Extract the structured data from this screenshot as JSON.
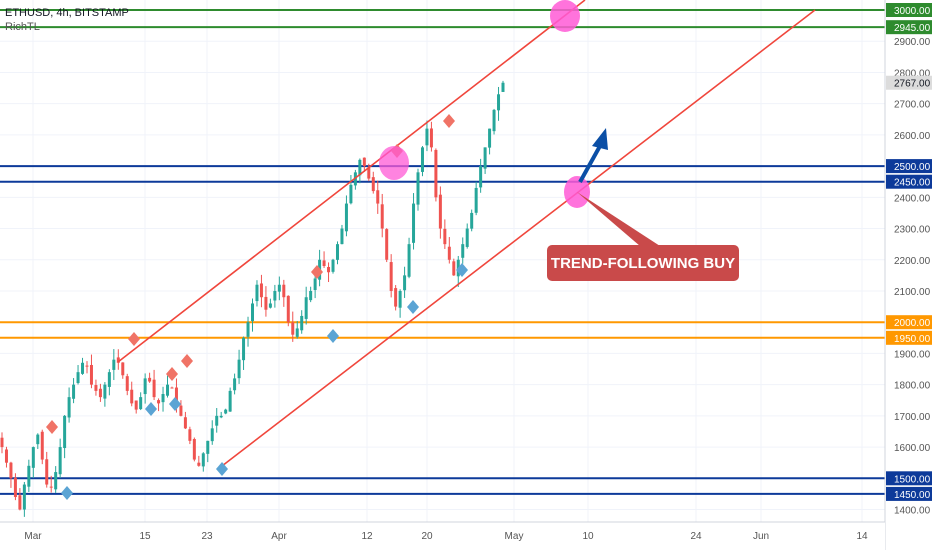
{
  "header": {
    "symbol_line": "ETHUSD, 4h, BITSTAMP",
    "indicator": "RichTL"
  },
  "annotation": {
    "label": "TREND-FOLLOWING BUY"
  },
  "colors": {
    "candle_up": "#26a69a",
    "candle_down": "#ef5350",
    "channel": "#f0463c",
    "blue_level": "#0d3a9a",
    "orange_level": "#ff9800",
    "green_level": "#2e8b2e",
    "pink_marker": "#ff5ad6",
    "arrow": "#0b4fa6",
    "callout_bg": "#c94a4a",
    "marker_up": "#5ba4d4",
    "marker_down": "#f07366"
  },
  "chart_data": {
    "type": "candlestick",
    "symbol": "ETHUSD",
    "timeframe": "4h",
    "exchange": "BITSTAMP",
    "ylim": [
      1350,
      3050
    ],
    "y_ticks": [
      1400,
      1500,
      1600,
      1700,
      1800,
      1900,
      2000,
      2100,
      2200,
      2300,
      2400,
      2500,
      2600,
      2700,
      2800,
      2900,
      3000
    ],
    "x_ticks": [
      "Mar",
      "15",
      "23",
      "Apr",
      "12",
      "20",
      "May",
      "10",
      "24",
      "Jun",
      "14"
    ],
    "price_tags": [
      {
        "value": "3000.00",
        "color": "green"
      },
      {
        "value": "2945.00",
        "color": "green"
      },
      {
        "value": "2767.00",
        "color": "current"
      },
      {
        "value": "2500.00",
        "color": "blue"
      },
      {
        "value": "2450.00",
        "color": "blue"
      },
      {
        "value": "2000.00",
        "color": "orange"
      },
      {
        "value": "1950.00",
        "color": "orange"
      },
      {
        "value": "1500.00",
        "color": "blue"
      },
      {
        "value": "1450.00",
        "color": "blue"
      }
    ],
    "horizontal_levels": [
      {
        "price": 3000,
        "color": "green"
      },
      {
        "price": 2945,
        "color": "green"
      },
      {
        "price": 2500,
        "color": "blue"
      },
      {
        "price": 2450,
        "color": "blue"
      },
      {
        "price": 2000,
        "color": "orange"
      },
      {
        "price": 1950,
        "color": "orange"
      },
      {
        "price": 1500,
        "color": "blue"
      },
      {
        "price": 1450,
        "color": "blue"
      }
    ],
    "last_price": 2767,
    "close_series": [
      1600,
      1550,
      1500,
      1440,
      1400,
      1480,
      1540,
      1600,
      1640,
      1560,
      1480,
      1470,
      1520,
      1600,
      1700,
      1760,
      1800,
      1840,
      1870,
      1860,
      1800,
      1780,
      1760,
      1800,
      1840,
      1880,
      1870,
      1830,
      1780,
      1740,
      1720,
      1760,
      1820,
      1810,
      1760,
      1740,
      1770,
      1800,
      1790,
      1740,
      1700,
      1660,
      1620,
      1560,
      1540,
      1580,
      1620,
      1660,
      1700,
      1700,
      1720,
      1780,
      1820,
      1880,
      1950,
      2000,
      2060,
      2120,
      2080,
      2040,
      2060,
      2100,
      2120,
      2080,
      2000,
      1960,
      1980,
      2020,
      2080,
      2100,
      2140,
      2200,
      2180,
      2160,
      2200,
      2250,
      2300,
      2380,
      2440,
      2480,
      2520,
      2500,
      2460,
      2420,
      2380,
      2300,
      2200,
      2100,
      2050,
      2100,
      2150,
      2250,
      2380,
      2480,
      2560,
      2620,
      2560,
      2400,
      2300,
      2250,
      2200,
      2150,
      2200,
      2250,
      2300,
      2350,
      2430,
      2500,
      2560,
      2620,
      2680,
      2730,
      2767
    ]
  }
}
